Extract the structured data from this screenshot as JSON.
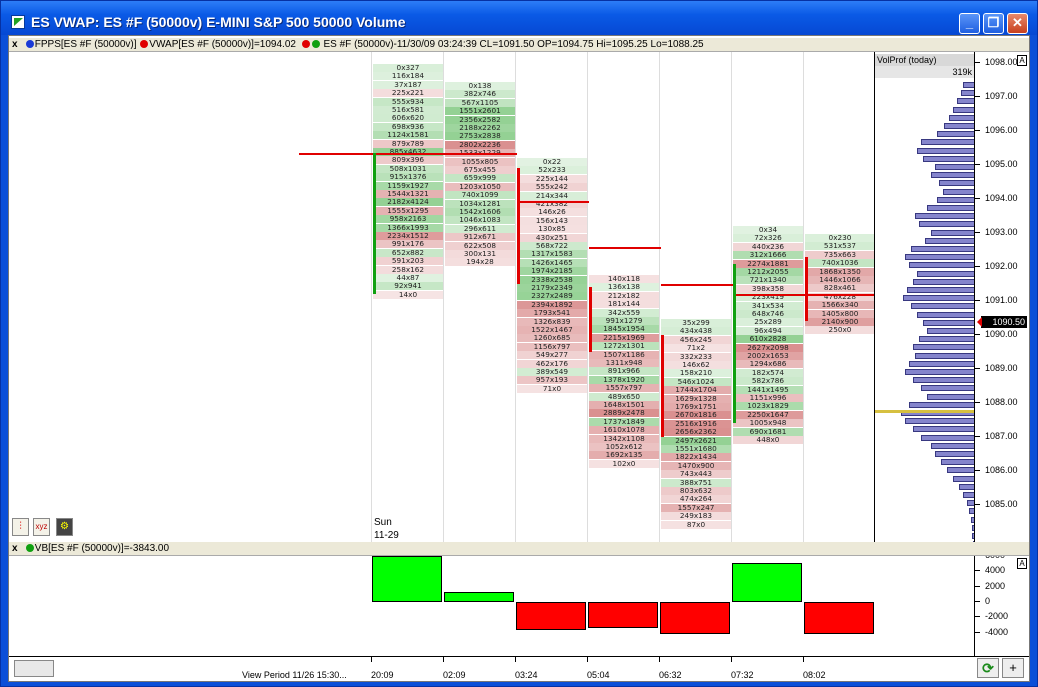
{
  "window": {
    "title": "ES VWAP: ES #F (50000v) E-MINI S&P 500 50000 Volume"
  },
  "colors": {
    "green_cell": "#7fc77f",
    "red_cell": "#e6a5a5",
    "red_line": "#e00000",
    "green_line": "#10a010",
    "vp_bar": "#8585cc",
    "vb_pos": "#00ff00",
    "vb_neg": "#ff0000"
  },
  "header_top": {
    "close": "x",
    "fpps": "FPPS[ES #F (50000v)]",
    "vwap": "VWAP[ES #F (50000v)]=1094.02",
    "es": "ES #F (50000v)-11/30/09 03:24:39 CL=1091.50 OP=1094.75 Hi=1095.25 Lo=1088.25"
  },
  "header_bottom": {
    "close": "x",
    "vb": "VB[ES #F (50000v)]=-3843.00"
  },
  "volprof": {
    "label": "VolProf (today)",
    "total": "319k",
    "a_label": "A",
    "current_price": "1090.50"
  },
  "price_ticks": [
    "1098.00",
    "1097.00",
    "1096.00",
    "1095.00",
    "1094.00",
    "1093.00",
    "1092.00",
    "1091.00",
    "1090.00",
    "1089.00",
    "1088.00",
    "1087.00",
    "1086.00",
    "1085.00"
  ],
  "osc_ticks": [
    "6000",
    "4000",
    "2000",
    "0",
    "-2000",
    "-4000"
  ],
  "session_label": {
    "day": "Sun",
    "date": "11-29"
  },
  "x_labels": [
    "20:09",
    "02:09",
    "03:24",
    "05:04",
    "06:32",
    "07:32",
    "08:02"
  ],
  "view_period": "View Period 11/26 15:30...",
  "vb_values": [
    6000,
    1300,
    -3700,
    -3400,
    -4200,
    5100,
    -4200
  ],
  "bars": [
    {
      "cells": [
        "0x327",
        "116x184",
        "37x187",
        "225x221",
        "555x934",
        "516x581",
        "606x620",
        "698x936",
        "1124x1581",
        "879x789",
        "885x4632",
        "809x396",
        "508x1031",
        "915x1376",
        "1159x1927",
        "1544x1321",
        "2182x4124",
        "1555x1295",
        "958x2163",
        "1366x1993",
        "2234x1512",
        "991x176",
        "652x882",
        "591x203",
        "258x162",
        "44x87",
        "92x941",
        "14x0"
      ]
    },
    {
      "cells": [
        "0x138",
        "382x746",
        "567x1105",
        "1551x2601",
        "2356x2582",
        "2188x2262",
        "2753x2838",
        "2802x2236",
        "1533x1229",
        "1055x805",
        "675x455",
        "659x999",
        "1203x1050",
        "740x1099",
        "1034x1281",
        "1542x1606",
        "1046x1083",
        "296x611",
        "912x671",
        "622x508",
        "300x131",
        "194x28"
      ]
    },
    {
      "cells": [
        "0x22",
        "52x233",
        "225x144",
        "555x242",
        "214x344",
        "421x382",
        "146x26",
        "156x143",
        "130x85",
        "430x251",
        "568x722",
        "1317x1583",
        "1426x1465",
        "1974x2185",
        "2338x2538",
        "2179x2349",
        "2327x2489",
        "2394x1892",
        "1793x541",
        "1326x839",
        "1522x1467",
        "1260x685",
        "1156x797",
        "549x277",
        "462x176",
        "389x549",
        "957x193",
        "71x0"
      ]
    },
    {
      "cells": [
        "140x118",
        "136x138",
        "212x182",
        "181x144",
        "342x559",
        "991x1279",
        "1845x1954",
        "2215x1969",
        "1272x1301",
        "1507x1186",
        "1311x948",
        "891x966",
        "1378x1920",
        "1557x797",
        "489x650",
        "1648x1501",
        "2889x2478",
        "1737x1849",
        "1610x1078",
        "1342x1108",
        "1052x612",
        "1692x135",
        "102x0"
      ]
    },
    {
      "cells": [
        "35x299",
        "434x438",
        "456x245",
        "71x2",
        "332x233",
        "146x62",
        "158x210",
        "546x1024",
        "1744x1704",
        "1629x1328",
        "1769x1751",
        "2670x1816",
        "2516x1916",
        "2656x2362",
        "2497x2621",
        "1551x1680",
        "1822x1434",
        "1470x900",
        "743x443",
        "388x751",
        "803x632",
        "474x264",
        "1557x247",
        "249x183",
        "87x0"
      ]
    },
    {
      "cells": [
        "0x34",
        "72x326",
        "440x236",
        "312x1666",
        "2274x1881",
        "1212x2055",
        "721x1340",
        "398x358",
        "223x419",
        "341x534",
        "648x746",
        "25x289",
        "96x494",
        "610x2828",
        "2627x2098",
        "2002x1653",
        "1294x686",
        "182x574",
        "582x786",
        "1441x1495",
        "1151x996",
        "1023x1829",
        "2250x1647",
        "1005x948",
        "690x1681",
        "448x0"
      ]
    },
    {
      "cells": [
        "0x230",
        "531x537",
        "735x663",
        "740x1036",
        "1868x1350",
        "1446x1066",
        "828x461",
        "476x228",
        "1566x340",
        "1405x800",
        "2140x900",
        "250x0"
      ]
    }
  ],
  "vol_profile": [
    12,
    14,
    18,
    22,
    26,
    31,
    38,
    54,
    58,
    52,
    40,
    44,
    36,
    32,
    38,
    48,
    60,
    56,
    44,
    50,
    64,
    70,
    66,
    58,
    62,
    68,
    72,
    64,
    58,
    52,
    48,
    56,
    62,
    60,
    66,
    70,
    62,
    54,
    48,
    66,
    74,
    70,
    62,
    54,
    44,
    40,
    34,
    28,
    22,
    16,
    12,
    8,
    6,
    4,
    3,
    3,
    2,
    2
  ]
}
